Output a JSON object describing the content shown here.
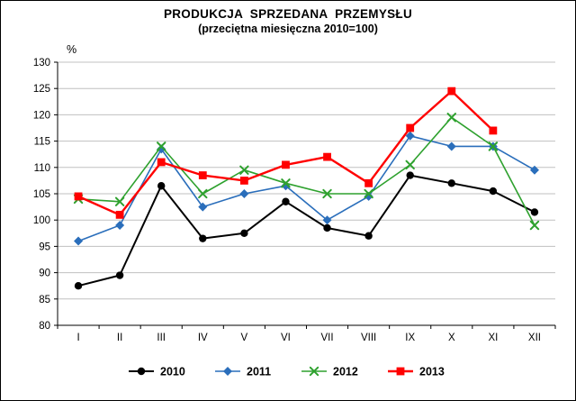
{
  "title": "PRODUKCJA  SPRZEDANA  PRZEMYSŁU",
  "subtitle": "(przeciętna miesięczna 2010=100)",
  "chart_data": {
    "type": "line",
    "title": "PRODUKCJA  SPRZEDANA  PRZEMYSŁU",
    "subtitle": "(przeciętna miesięczna 2010=100)",
    "ylabel": "%",
    "xlabel": "",
    "ylim": [
      80,
      130
    ],
    "yticks": [
      80,
      85,
      90,
      95,
      100,
      105,
      110,
      115,
      120,
      125,
      130
    ],
    "grid": true,
    "legend_position": "bottom",
    "categories": [
      "I",
      "II",
      "III",
      "IV",
      "V",
      "VI",
      "VII",
      "VIII",
      "IX",
      "X",
      "XI",
      "XII"
    ],
    "series": [
      {
        "name": "2010",
        "color": "#000000",
        "marker": "circle",
        "line_width": 2,
        "values": [
          87.5,
          89.5,
          106.5,
          96.5,
          97.5,
          103.5,
          98.5,
          97,
          108.5,
          107,
          105.5,
          101.5
        ]
      },
      {
        "name": "2011",
        "color": "#2A6EBB",
        "marker": "diamond",
        "line_width": 1.6,
        "values": [
          96,
          99,
          113.5,
          102.5,
          105,
          106.5,
          100,
          104.5,
          116,
          114,
          114,
          109.5
        ]
      },
      {
        "name": "2012",
        "color": "#2EA12E",
        "marker": "x",
        "line_width": 1.6,
        "values": [
          104,
          103.5,
          114,
          105,
          109.5,
          107,
          105,
          105,
          110.5,
          119.5,
          114,
          99
        ]
      },
      {
        "name": "2013",
        "color": "#FF0000",
        "marker": "square",
        "line_width": 2.4,
        "values": [
          104.5,
          101,
          111,
          108.5,
          107.5,
          110.5,
          112,
          107,
          117.5,
          124.5,
          117,
          null
        ]
      }
    ],
    "colors": {
      "gridline": "#C0C0C0",
      "axis": "#000000",
      "background": "#FFFFFF"
    }
  }
}
